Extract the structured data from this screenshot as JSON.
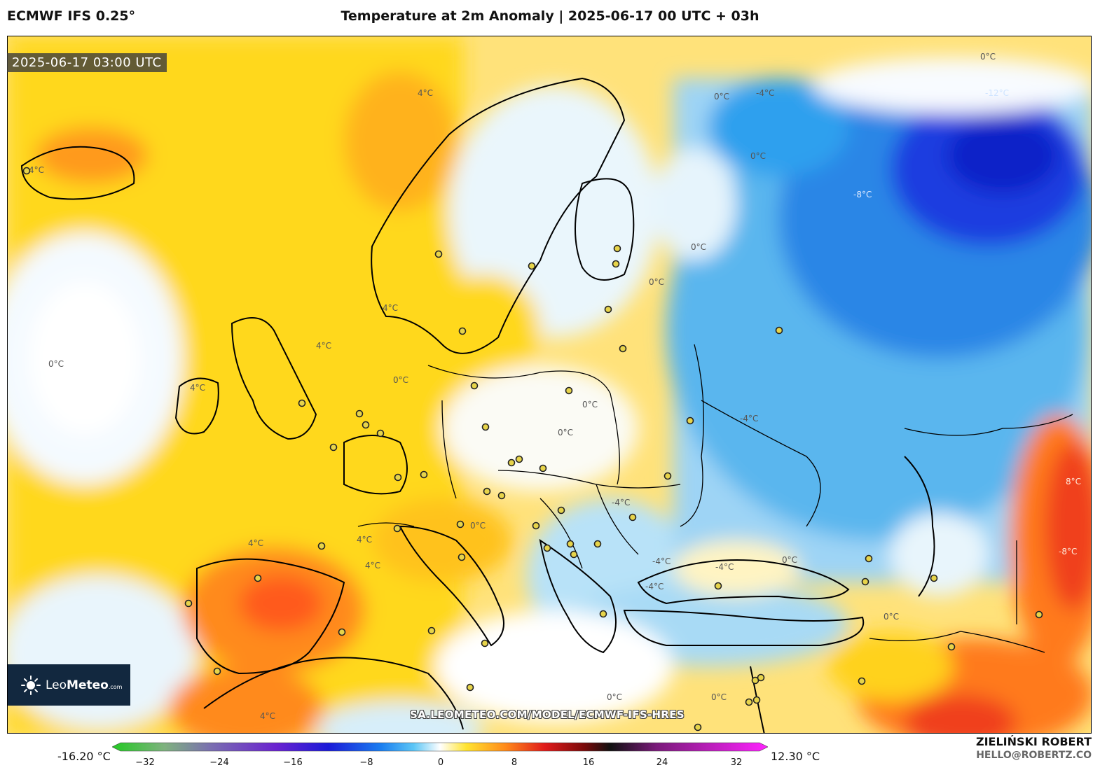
{
  "header": {
    "model": "ECMWF IFS 0.25°",
    "title": "Temperature at 2m Anomaly | 2025-06-17 00 UTC + 03h"
  },
  "map": {
    "timestamp": "2025-06-17 03:00 UTC",
    "url_watermark": "SA.LEOMETEO.COM/MODEL/ECMWF-IFS-HRES",
    "contour_labels": [
      "0°C",
      "4°C",
      "-4°C",
      "8°C",
      "-8°C",
      "-12°C"
    ],
    "region": "Europe",
    "colors": {
      "warm_anomaly": "#ffd400",
      "strong_warm": "#ff5a1a",
      "neutral": "#ffffff",
      "cool_anomaly": "#a8daf5",
      "strong_cool": "#0a2ad8"
    }
  },
  "logo": {
    "brand_light": "Leo",
    "brand_bold": "Meteo",
    "suffix": ".com",
    "icon": "sun-icon"
  },
  "colorbar": {
    "min_label": "-16.20 °C",
    "max_label": "12.30 °C",
    "ticks": [
      "−32",
      "−24",
      "−16",
      "−8",
      "0",
      "8",
      "16",
      "24",
      "32"
    ]
  },
  "credits": {
    "author": "ZIELIŃSKI ROBERT",
    "email": "HELLO@ROBERTZ.CO"
  }
}
